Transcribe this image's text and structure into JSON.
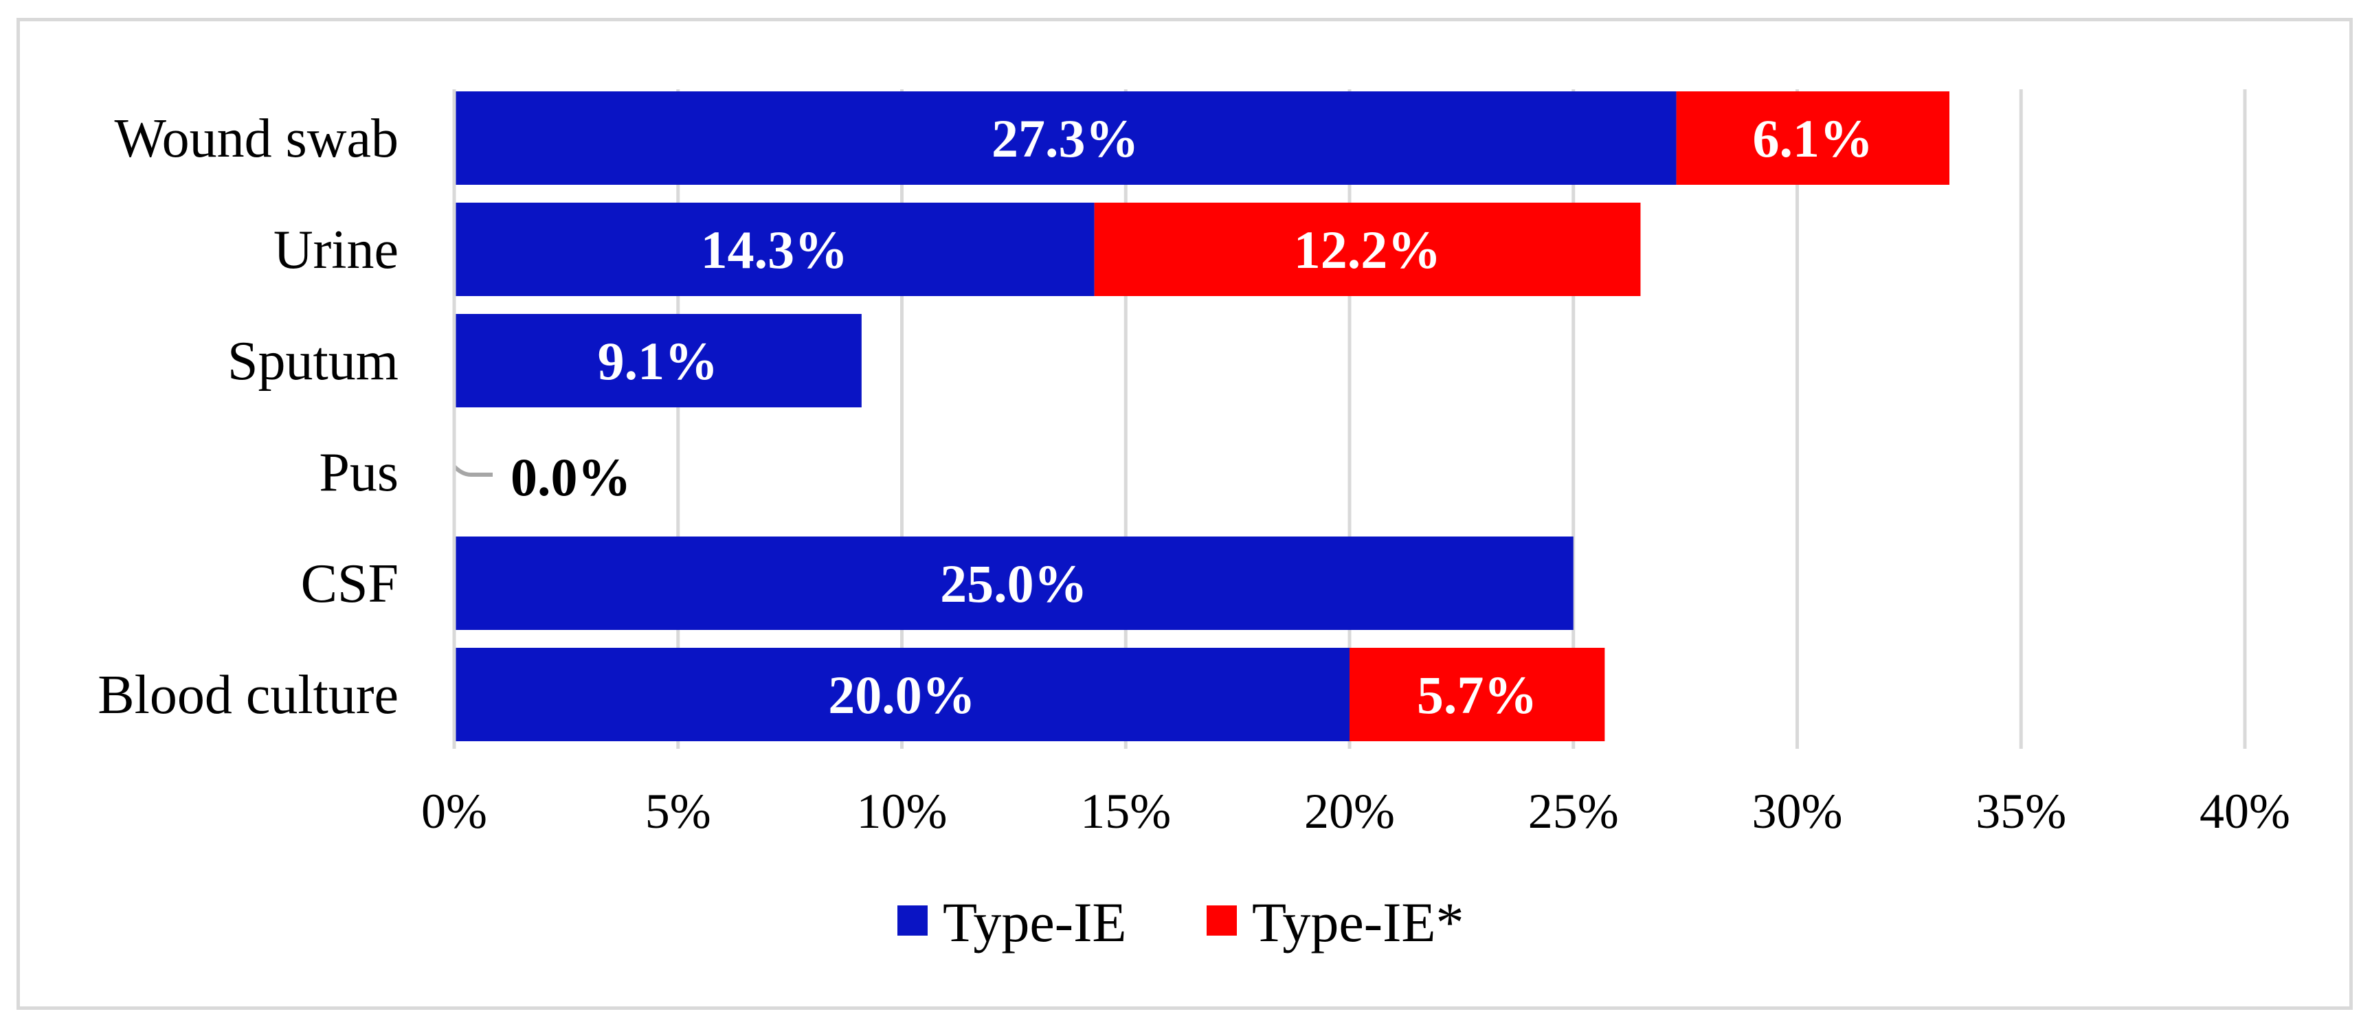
{
  "chart_data": {
    "type": "bar",
    "orientation": "horizontal",
    "stacked": true,
    "categories": [
      "Wound swab",
      "Urine",
      "Sputum",
      "Pus",
      "CSF",
      "Blood culture"
    ],
    "series": [
      {
        "name": "Type-IE",
        "values": [
          27.3,
          14.3,
          9.1,
          0.0,
          25.0,
          20.0
        ],
        "color": "#0a14c4",
        "labels": [
          "27.3%",
          "14.3%",
          "9.1%",
          "0.0%",
          "25.0%",
          "20.0%"
        ]
      },
      {
        "name": "Type-IE*",
        "values": [
          6.1,
          12.2,
          0,
          0,
          0,
          5.7
        ],
        "color": "#ff0000",
        "labels": [
          "6.1%",
          "12.2%",
          "",
          "",
          "",
          "5.7%"
        ]
      }
    ],
    "xlim": [
      0,
      40
    ],
    "xticks": [
      0,
      5,
      10,
      15,
      20,
      25,
      30,
      35,
      40
    ],
    "xtick_labels": [
      "0%",
      "5%",
      "10%",
      "15%",
      "20%",
      "25%",
      "30%",
      "35%",
      "40%"
    ],
    "title": "",
    "xlabel": "",
    "ylabel": "",
    "grid": "vertical",
    "legend_position": "bottom"
  }
}
